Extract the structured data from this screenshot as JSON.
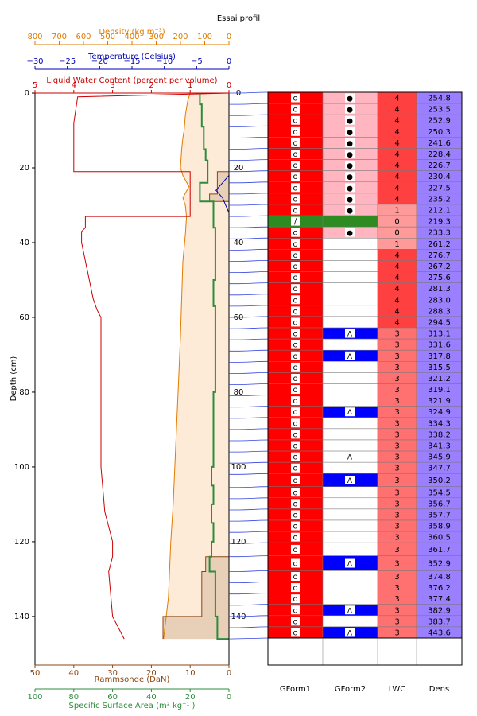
{
  "title": "Essai profil",
  "axes": {
    "density": {
      "label": "Density (kg m⁻³)",
      "ticks": [
        "800",
        "700",
        "600",
        "500",
        "400",
        "300",
        "200",
        "100",
        "0"
      ]
    },
    "temperature": {
      "label": "Temperature (Celsius)",
      "ticks": [
        "−30",
        "−25",
        "−20",
        "−15",
        "−10",
        "−5",
        "0"
      ]
    },
    "lwc": {
      "label": "Liquid Water Content (percent per volume)",
      "ticks": [
        "5",
        "4",
        "3",
        "2",
        "1",
        "0"
      ]
    },
    "depth": {
      "label": "Depth (cm)",
      "ticks": [
        "0",
        "20",
        "40",
        "60",
        "80",
        "100",
        "120",
        "140"
      ]
    },
    "ram": {
      "label": "Rammsonde (DaN)",
      "ticks": [
        "50",
        "40",
        "30",
        "20",
        "10",
        "0"
      ]
    },
    "ssa": {
      "label": "Specific Surface Area (m²  kg⁻¹ )",
      "ticks": [
        "100",
        "80",
        "60",
        "40",
        "20",
        "0"
      ]
    }
  },
  "colors": {
    "density": "#e07b00",
    "temperature": "#0000b4",
    "lwc": "#cc0000",
    "ssa": "#2e8b3e",
    "ram": "#8b4513",
    "density_fill": "#fdebd8",
    "ram_fill": "#e8d0b8",
    "red": "#ff0000",
    "pink": "#ffb6c1",
    "blue": "#0000ff",
    "green": "#2e8b22",
    "lwc_hi": "#ff4040",
    "lwc_mid": "#ff7070",
    "lwc_lo": "#ff9a9a",
    "dens_cell": "#9a80ff"
  },
  "table": {
    "headers": [
      "GForm1",
      "GForm2",
      "LWC",
      "Dens"
    ],
    "rows": [
      {
        "g1": "o",
        "g1c": "red",
        "g2": "●",
        "g2c": "pink",
        "lwc": "4",
        "dens": "254.8"
      },
      {
        "g1": "o",
        "g1c": "red",
        "g2": "●",
        "g2c": "pink",
        "lwc": "4",
        "dens": "253.5"
      },
      {
        "g1": "o",
        "g1c": "red",
        "g2": "●",
        "g2c": "pink",
        "lwc": "4",
        "dens": "252.9"
      },
      {
        "g1": "o",
        "g1c": "red",
        "g2": "●",
        "g2c": "pink",
        "lwc": "4",
        "dens": "250.3"
      },
      {
        "g1": "o",
        "g1c": "red",
        "g2": "●",
        "g2c": "pink",
        "lwc": "4",
        "dens": "241.6"
      },
      {
        "g1": "o",
        "g1c": "red",
        "g2": "●",
        "g2c": "pink",
        "lwc": "4",
        "dens": "228.4"
      },
      {
        "g1": "o",
        "g1c": "red",
        "g2": "●",
        "g2c": "pink",
        "lwc": "4",
        "dens": "226.7"
      },
      {
        "g1": "o",
        "g1c": "red",
        "g2": "●",
        "g2c": "pink",
        "lwc": "4",
        "dens": "230.4"
      },
      {
        "g1": "o",
        "g1c": "red",
        "g2": "●",
        "g2c": "pink",
        "lwc": "4",
        "dens": "227.5"
      },
      {
        "g1": "o",
        "g1c": "red",
        "g2": "●",
        "g2c": "pink",
        "lwc": "4",
        "dens": "235.2"
      },
      {
        "g1": "o",
        "g1c": "red",
        "g2": "●",
        "g2c": "pink",
        "lwc": "1",
        "dens": "212.1"
      },
      {
        "g1": "∕",
        "g1c": "green",
        "g2": "",
        "g2c": "green",
        "lwc": "0",
        "dens": "219.3"
      },
      {
        "g1": "o",
        "g1c": "red",
        "g2": "●",
        "g2c": "pink",
        "lwc": "0",
        "dens": "233.3"
      },
      {
        "g1": "o",
        "g1c": "red",
        "g2": "",
        "g2c": "white",
        "lwc": "1",
        "dens": "261.2"
      },
      {
        "g1": "o",
        "g1c": "red",
        "g2": "",
        "g2c": "white",
        "lwc": "4",
        "dens": "276.7"
      },
      {
        "g1": "o",
        "g1c": "red",
        "g2": "",
        "g2c": "white",
        "lwc": "4",
        "dens": "267.2"
      },
      {
        "g1": "o",
        "g1c": "red",
        "g2": "",
        "g2c": "white",
        "lwc": "4",
        "dens": "275.6"
      },
      {
        "g1": "o",
        "g1c": "red",
        "g2": "",
        "g2c": "white",
        "lwc": "4",
        "dens": "281.3"
      },
      {
        "g1": "o",
        "g1c": "red",
        "g2": "",
        "g2c": "white",
        "lwc": "4",
        "dens": "283.0"
      },
      {
        "g1": "o",
        "g1c": "red",
        "g2": "",
        "g2c": "white",
        "lwc": "4",
        "dens": "288.3"
      },
      {
        "g1": "o",
        "g1c": "red",
        "g2": "",
        "g2c": "white",
        "lwc": "4",
        "dens": "294.5"
      },
      {
        "g1": "o",
        "g1c": "red",
        "g2": "Λ",
        "g2c": "blue",
        "lwc": "3",
        "dens": "313.1"
      },
      {
        "g1": "o",
        "g1c": "red",
        "g2": "",
        "g2c": "white",
        "lwc": "3",
        "dens": "331.6"
      },
      {
        "g1": "o",
        "g1c": "red",
        "g2": "Λ",
        "g2c": "blue",
        "lwc": "3",
        "dens": "317.8"
      },
      {
        "g1": "o",
        "g1c": "red",
        "g2": "",
        "g2c": "white",
        "lwc": "3",
        "dens": "315.5"
      },
      {
        "g1": "o",
        "g1c": "red",
        "g2": "",
        "g2c": "white",
        "lwc": "3",
        "dens": "321.2"
      },
      {
        "g1": "o",
        "g1c": "red",
        "g2": "",
        "g2c": "white",
        "lwc": "3",
        "dens": "319.1"
      },
      {
        "g1": "o",
        "g1c": "red",
        "g2": "",
        "g2c": "white",
        "lwc": "3",
        "dens": "321.9"
      },
      {
        "g1": "o",
        "g1c": "red",
        "g2": "Λ",
        "g2c": "blue",
        "lwc": "3",
        "dens": "324.9"
      },
      {
        "g1": "o",
        "g1c": "red",
        "g2": "",
        "g2c": "white",
        "lwc": "3",
        "dens": "334.3"
      },
      {
        "g1": "o",
        "g1c": "red",
        "g2": "",
        "g2c": "white",
        "lwc": "3",
        "dens": "338.2"
      },
      {
        "g1": "o",
        "g1c": "red",
        "g2": "",
        "g2c": "white",
        "lwc": "3",
        "dens": "341.3"
      },
      {
        "g1": "o",
        "g1c": "red",
        "g2": "Λ",
        "g2c": "white",
        "lwc": "3",
        "dens": "345.9"
      },
      {
        "g1": "o",
        "g1c": "red",
        "g2": "",
        "g2c": "white",
        "lwc": "3",
        "dens": "347.7"
      },
      {
        "g1": "o",
        "g1c": "red",
        "g2": "Λ",
        "g2c": "blue",
        "lwc": "3",
        "dens": "350.2"
      },
      {
        "g1": "o",
        "g1c": "red",
        "g2": "",
        "g2c": "white",
        "lwc": "3",
        "dens": "354.5"
      },
      {
        "g1": "o",
        "g1c": "red",
        "g2": "",
        "g2c": "white",
        "lwc": "3",
        "dens": "356.7"
      },
      {
        "g1": "o",
        "g1c": "red",
        "g2": "",
        "g2c": "white",
        "lwc": "3",
        "dens": "357.7"
      },
      {
        "g1": "o",
        "g1c": "red",
        "g2": "",
        "g2c": "white",
        "lwc": "3",
        "dens": "358.9"
      },
      {
        "g1": "o",
        "g1c": "red",
        "g2": "",
        "g2c": "white",
        "lwc": "3",
        "dens": "360.5"
      },
      {
        "g1": "o",
        "g1c": "red",
        "g2": "",
        "g2c": "white",
        "lwc": "3",
        "dens": "361.7"
      },
      {
        "g1": "o",
        "g1c": "red",
        "g2": "Λ",
        "g2c": "blue",
        "lwc": "3",
        "dens": "352.9"
      },
      {
        "g1": "o",
        "g1c": "red",
        "g2": "",
        "g2c": "white",
        "lwc": "3",
        "dens": "374.8"
      },
      {
        "g1": "o",
        "g1c": "red",
        "g2": "",
        "g2c": "white",
        "lwc": "3",
        "dens": "376.2"
      },
      {
        "g1": "o",
        "g1c": "red",
        "g2": "",
        "g2c": "white",
        "lwc": "3",
        "dens": "377.4"
      },
      {
        "g1": "o",
        "g1c": "red",
        "g2": "Λ",
        "g2c": "blue",
        "lwc": "3",
        "dens": "382.9"
      },
      {
        "g1": "o",
        "g1c": "red",
        "g2": "",
        "g2c": "white",
        "lwc": "3",
        "dens": "383.7"
      },
      {
        "g1": "o",
        "g1c": "red",
        "g2": "Λ",
        "g2c": "blue",
        "lwc": "3",
        "dens": "443.6"
      }
    ]
  },
  "chart_data": {
    "type": "line",
    "title": "Essai profil",
    "ylabel": "Depth (cm)",
    "ylim": [
      0,
      153
    ],
    "y_inverted": true,
    "grid": false,
    "layer_boundaries_cm": [
      0,
      3,
      6,
      9,
      12,
      15,
      18,
      21,
      24,
      27,
      30,
      33,
      36,
      39,
      42,
      45,
      48,
      51,
      54,
      57,
      60,
      63,
      66,
      69,
      72,
      75,
      78,
      81,
      84,
      87,
      90,
      93,
      96,
      99,
      102,
      105.5,
      108.5,
      111.5,
      114.5,
      117.5,
      120.5,
      124,
      128,
      131,
      134,
      137,
      140,
      143,
      146
    ],
    "density": {
      "xlim": [
        800,
        0
      ],
      "x_unit": "kg m-3",
      "depth": [
        0,
        1,
        2,
        4,
        6,
        10,
        12,
        15,
        20,
        22,
        25,
        28,
        30,
        33,
        38,
        45,
        55,
        65,
        80,
        95,
        110,
        120,
        135,
        146
      ],
      "values": [
        160,
        165,
        170,
        175,
        180,
        185,
        190,
        195,
        200,
        190,
        165,
        190,
        180,
        175,
        180,
        190,
        195,
        200,
        210,
        220,
        230,
        240,
        250,
        270
      ]
    },
    "ramm": {
      "xlim": [
        50,
        0
      ],
      "x_unit": "DaN",
      "depth": [
        0,
        21,
        21,
        27,
        27,
        29,
        29,
        124,
        124,
        128,
        128,
        140,
        140,
        146
      ],
      "values": [
        0,
        0,
        3,
        3,
        5,
        5,
        0,
        0,
        6,
        6,
        7,
        7,
        17,
        17
      ]
    },
    "ssa": {
      "xlim": [
        100,
        0
      ],
      "x_unit": "m2 kg-1",
      "depth": [
        0,
        3,
        6,
        9,
        12,
        15,
        18,
        21,
        24,
        27,
        29,
        33,
        36,
        40,
        45,
        50,
        55,
        57,
        60,
        70,
        80,
        90,
        100,
        105,
        110,
        115,
        120,
        124,
        128,
        134,
        140,
        146
      ],
      "values": [
        15,
        14,
        14,
        13,
        13,
        12,
        11,
        11,
        15,
        15,
        8,
        8,
        7,
        7,
        7,
        8,
        8,
        7,
        7,
        7,
        8,
        8,
        9,
        8,
        9,
        8,
        9,
        10,
        7,
        7,
        6,
        0
      ]
    },
    "lwc": {
      "xlim": [
        5,
        0
      ],
      "x_unit": "percent per volume",
      "depth": [
        0,
        1,
        8,
        21,
        21,
        33,
        33,
        36,
        37,
        40,
        55,
        58,
        60,
        80,
        100,
        112,
        120,
        124,
        128,
        140,
        146
      ],
      "values": [
        0,
        3.9,
        4.0,
        4.0,
        1.0,
        1.0,
        3.7,
        3.7,
        3.8,
        3.8,
        3.5,
        3.4,
        3.3,
        3.3,
        3.3,
        3.2,
        3.0,
        3.0,
        3.1,
        3.0,
        2.7
      ]
    },
    "temperature": {
      "xlim": [
        -30,
        0
      ],
      "x_unit": "Celsius",
      "depth": [
        22,
        24,
        26,
        28,
        30,
        32
      ],
      "values": [
        0,
        -1.0,
        -2.0,
        -1.0,
        -0.5,
        0
      ]
    }
  }
}
